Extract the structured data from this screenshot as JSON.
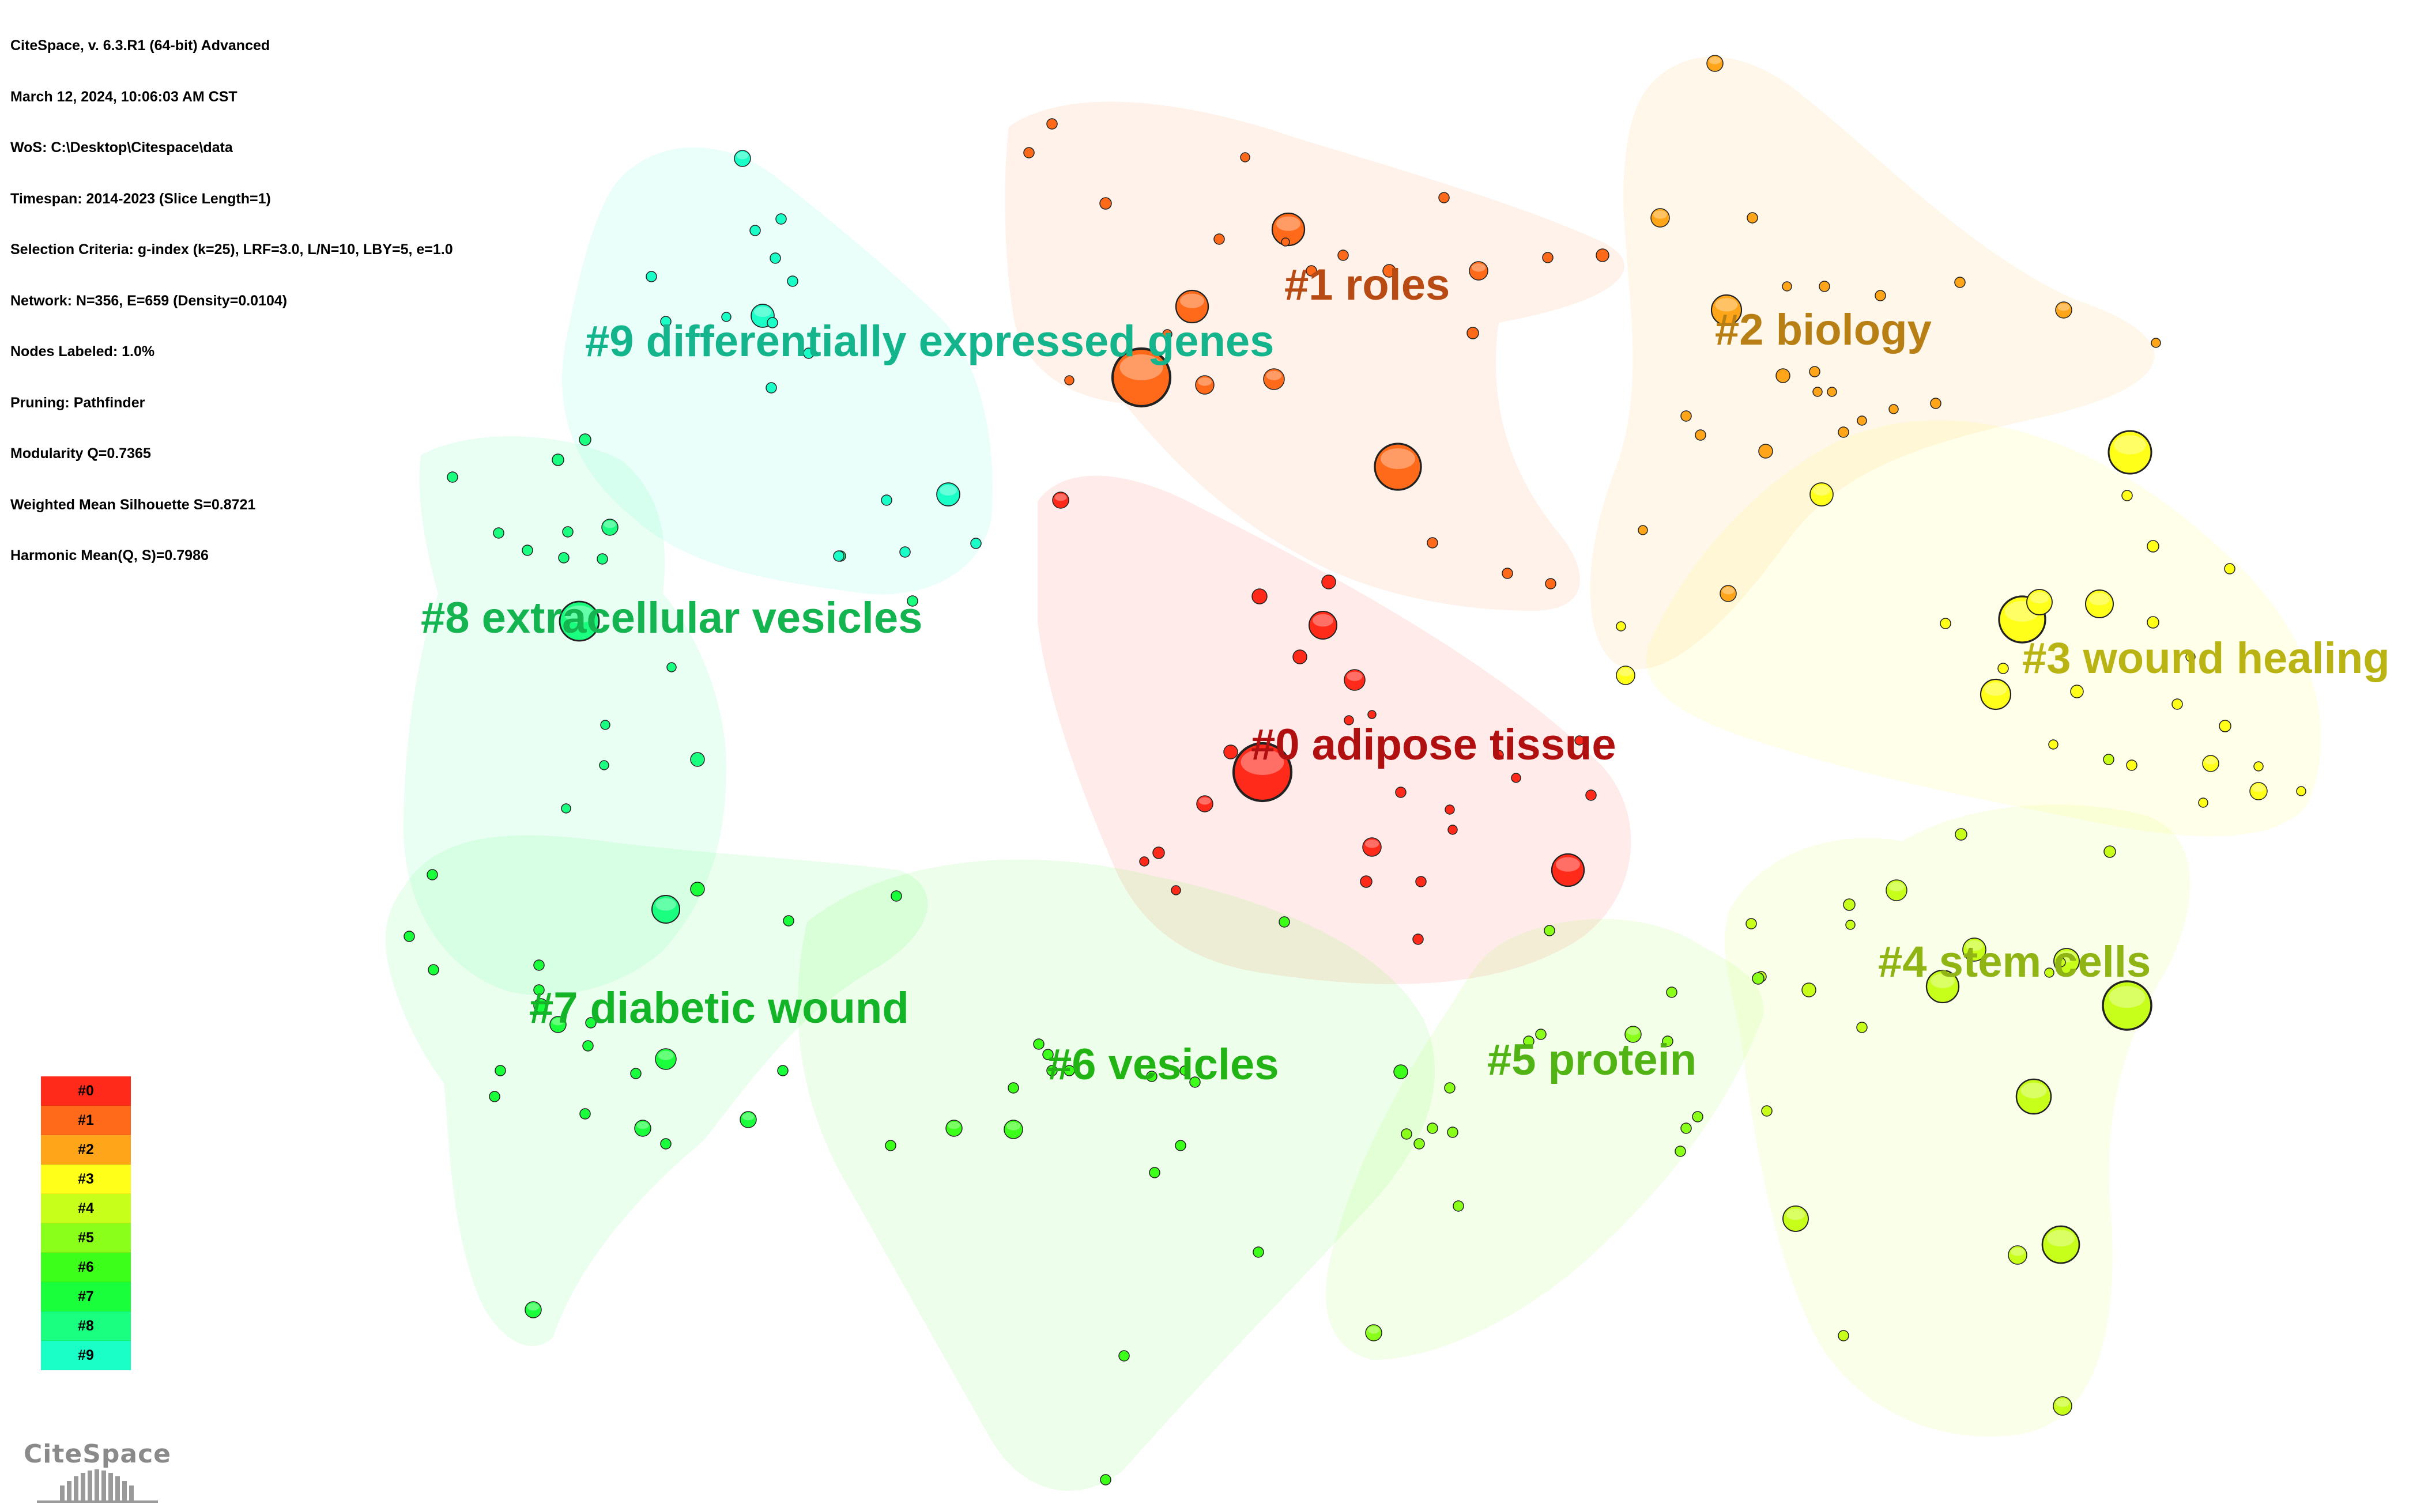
{
  "meta_lines": [
    "CiteSpace, v. 6.3.R1 (64-bit) Advanced",
    "March 12, 2024, 10:06:03 AM CST",
    "WoS: C:\\Desktop\\Citespace\\data",
    "Timespan: 2014-2023 (Slice Length=1)",
    "Selection Criteria: g-index (k=25), LRF=3.0, L/N=10, LBY=5, e=1.0",
    "Network: N=356, E=659 (Density=0.0104)",
    "Nodes Labeled: 1.0%",
    "Pruning: Pathfinder",
    "Modularity Q=0.7365",
    "Weighted Mean Silhouette S=0.8721",
    "Harmonic Mean(Q, S)=0.7986"
  ],
  "clusters": [
    {
      "id": "#0",
      "label": "#0 adipose tissue",
      "color": "#ff2a1a",
      "label_color": "#b01010"
    },
    {
      "id": "#1",
      "label": "#1 roles",
      "color": "#ff6a1a",
      "label_color": "#b84a14"
    },
    {
      "id": "#2",
      "label": "#2 biology",
      "color": "#ffa51a",
      "label_color": "#b87f14"
    },
    {
      "id": "#3",
      "label": "#3 wound healing",
      "color": "#ffff1a",
      "label_color": "#b9b414"
    },
    {
      "id": "#4",
      "label": "#4 stem cells",
      "color": "#c8ff1a",
      "label_color": "#8fb414"
    },
    {
      "id": "#5",
      "label": "#5 protein",
      "color": "#8aff1a",
      "label_color": "#52b414"
    },
    {
      "id": "#6",
      "label": "#6 vesicles",
      "color": "#3cff1a",
      "label_color": "#22b414"
    },
    {
      "id": "#7",
      "label": "#7 diabetic wound",
      "color": "#1aff3c",
      "label_color": "#14b428"
    },
    {
      "id": "#8",
      "label": "#8 extracellular vesicles",
      "color": "#1aff80",
      "label_color": "#14b450"
    },
    {
      "id": "#9",
      "label": "#9 differentially expressed genes",
      "color": "#1affc8",
      "label_color": "#14b48c"
    }
  ],
  "legend": [
    "#0",
    "#1",
    "#2",
    "#3",
    "#4",
    "#5",
    "#6",
    "#7",
    "#8",
    "#9"
  ],
  "logo_text": "CiteSpace"
}
